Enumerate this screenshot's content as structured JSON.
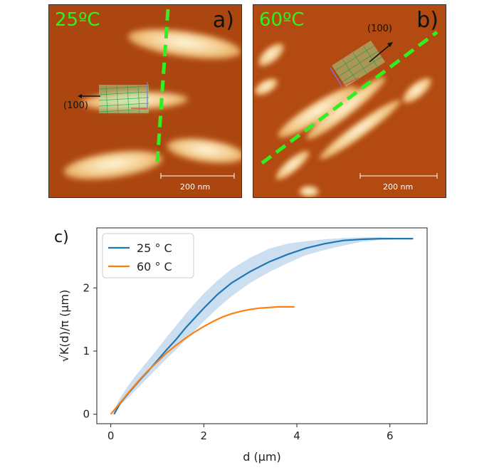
{
  "panel_a": {
    "temperature": "25ºC",
    "letter": "a)",
    "scale": "200 nm",
    "direction": "(100)"
  },
  "panel_b": {
    "temperature": "60ºC",
    "letter": "b)",
    "scale": "200 nm",
    "direction": "(100)"
  },
  "colors": {
    "afm_background": "#b24a12",
    "afm_bright": "#fff0c8",
    "dashed_line": "#33ee22",
    "series_25": "#1f77b4",
    "series_60": "#ff7f0e",
    "band_25": "#c6dbef"
  },
  "chart_data": {
    "type": "line",
    "panel_label": "c)",
    "xlabel": "d (μm)",
    "ylabel": "√K(d)/π (μm)",
    "xlim": [
      -0.3,
      6.8
    ],
    "ylim": [
      -0.15,
      2.95
    ],
    "xticks": [
      0,
      2,
      4,
      6
    ],
    "yticks": [
      0,
      1,
      2
    ],
    "grid": false,
    "legend": "top-left",
    "series": [
      {
        "name": "25 ° C",
        "color": "#1f77b4",
        "x": [
          0.07,
          0.2,
          0.4,
          0.6,
          0.8,
          1.0,
          1.2,
          1.4,
          1.6,
          1.8,
          2.0,
          2.3,
          2.6,
          3.0,
          3.4,
          3.8,
          4.2,
          4.6,
          5.0,
          5.4,
          5.8,
          6.2,
          6.5
        ],
        "y": [
          0.0,
          0.17,
          0.35,
          0.52,
          0.68,
          0.85,
          1.02,
          1.18,
          1.36,
          1.52,
          1.68,
          1.9,
          2.08,
          2.26,
          2.41,
          2.53,
          2.63,
          2.7,
          2.75,
          2.77,
          2.78,
          2.78,
          2.78
        ],
        "band_lower": [
          0.0,
          0.14,
          0.28,
          0.43,
          0.58,
          0.73,
          0.88,
          1.02,
          1.17,
          1.32,
          1.47,
          1.68,
          1.87,
          2.08,
          2.25,
          2.39,
          2.52,
          2.6,
          2.67,
          2.73,
          2.76,
          2.77,
          2.77
        ],
        "band_upper": [
          0.05,
          0.26,
          0.48,
          0.67,
          0.85,
          1.03,
          1.22,
          1.4,
          1.58,
          1.75,
          1.91,
          2.12,
          2.3,
          2.48,
          2.62,
          2.7,
          2.74,
          2.77,
          2.79,
          2.8,
          2.8,
          2.79,
          2.79
        ]
      },
      {
        "name": "60 ° C",
        "color": "#ff7f0e",
        "x": [
          0.0,
          0.2,
          0.4,
          0.6,
          0.8,
          1.0,
          1.2,
          1.4,
          1.6,
          1.8,
          2.0,
          2.2,
          2.4,
          2.6,
          2.8,
          3.0,
          3.2,
          3.4,
          3.6,
          3.8,
          3.95
        ],
        "y": [
          0.0,
          0.18,
          0.36,
          0.53,
          0.69,
          0.83,
          0.97,
          1.09,
          1.2,
          1.3,
          1.39,
          1.47,
          1.54,
          1.59,
          1.63,
          1.66,
          1.68,
          1.69,
          1.7,
          1.7,
          1.7
        ]
      }
    ]
  }
}
